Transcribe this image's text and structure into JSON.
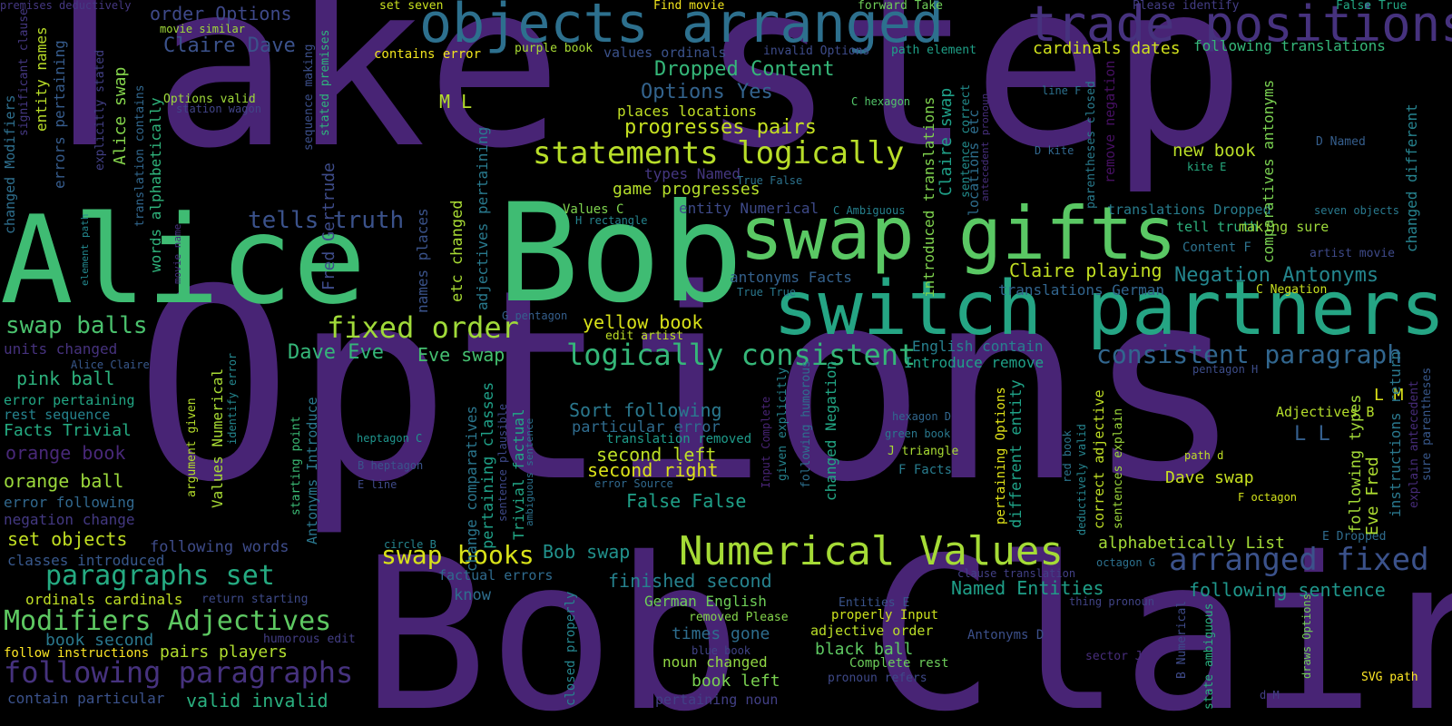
{
  "words": [
    {
      "text": "Take step",
      "color": "#482475"
    },
    {
      "text": "Options",
      "color": "#482475"
    },
    {
      "text": "Bob Claire",
      "color": "#482475"
    },
    {
      "text": "Alice",
      "color": "#3fbc73"
    },
    {
      "text": "Bob",
      "color": "#3fbc73"
    },
    {
      "text": "swap gifts",
      "color": "#5ac864"
    },
    {
      "text": "switch partners",
      "color": "#25a584"
    },
    {
      "text": "objects arranged",
      "color": "#2d708e"
    },
    {
      "text": "trade positions",
      "color": "#46327e"
    },
    {
      "text": "Numerical Values",
      "color": "#a5db36"
    },
    {
      "text": "arranged fixed",
      "color": "#3b528b"
    },
    {
      "text": "Modifiers Adjectives",
      "color": "#5ec962"
    },
    {
      "text": "following paragraphs",
      "color": "#46327e"
    },
    {
      "text": "paragraphs set",
      "color": "#25ab82"
    },
    {
      "text": "statements logically",
      "color": "#b8de29"
    },
    {
      "text": "logically consistent",
      "color": "#35b779"
    },
    {
      "text": "fixed order",
      "color": "#a0da39"
    },
    {
      "text": "consistent paragraph",
      "color": "#31668e"
    },
    {
      "text": "swap books",
      "color": "#d8e219"
    },
    {
      "text": "swap balls",
      "color": "#4ac16d"
    },
    {
      "text": "Negation Antonyms",
      "color": "#24868e"
    },
    {
      "text": "Claire playing",
      "color": "#c2df23"
    },
    {
      "text": "Dropped Content",
      "color": "#35b779"
    },
    {
      "text": "Options Yes",
      "color": "#33638d"
    },
    {
      "text": "progresses pairs",
      "color": "#c5e021"
    },
    {
      "text": "tells truth",
      "color": "#3b528b"
    },
    {
      "text": "Claire Dave",
      "color": "#3b528b"
    },
    {
      "text": "order Options",
      "color": "#3e4989"
    },
    {
      "text": "Dave Eve",
      "color": "#35b779"
    },
    {
      "text": "Eve swap",
      "color": "#44bf70"
    },
    {
      "text": "yellow book",
      "color": "#d8e219"
    },
    {
      "text": "game progresses",
      "color": "#b5de2b"
    },
    {
      "text": "places locations",
      "color": "#c0df25"
    },
    {
      "text": "second left",
      "color": "#bddf26"
    },
    {
      "text": "second right",
      "color": "#dde318"
    },
    {
      "text": "False False",
      "color": "#1fa088"
    },
    {
      "text": "Sort following",
      "color": "#2a788e"
    },
    {
      "text": "particular error",
      "color": "#2f6c8e"
    },
    {
      "text": "translation removed",
      "color": "#1e9b8a"
    },
    {
      "text": "Bob swap",
      "color": "#21918c"
    },
    {
      "text": "finished second",
      "color": "#26828e"
    },
    {
      "text": "German English",
      "color": "#6ece58"
    },
    {
      "text": "times gone",
      "color": "#2e6d8e"
    },
    {
      "text": "black ball",
      "color": "#5ec962"
    },
    {
      "text": "book left",
      "color": "#7ad151"
    },
    {
      "text": "noun changed",
      "color": "#90d743"
    },
    {
      "text": "pertaining noun",
      "color": "#424086"
    },
    {
      "text": "Named Entities",
      "color": "#1f9f88"
    },
    {
      "text": "following sentence",
      "color": "#1f968b"
    },
    {
      "text": "alphabetically List",
      "color": "#a2da37"
    },
    {
      "text": "Dave swap",
      "color": "#c8e020"
    },
    {
      "text": "new book",
      "color": "#bade28"
    },
    {
      "text": "tell truth",
      "color": "#2db27d"
    },
    {
      "text": "making sure",
      "color": "#9dd93b"
    },
    {
      "text": "Content F",
      "color": "#2c728e"
    },
    {
      "text": "entity Numerical",
      "color": "#3e4a89"
    },
    {
      "text": "antonyms Facts",
      "color": "#34618d"
    },
    {
      "text": "Values C",
      "color": "#7fd34e"
    },
    {
      "text": "types Named",
      "color": "#453781"
    },
    {
      "text": "M L",
      "color": "#b5de2b"
    },
    {
      "text": "L M",
      "color": "#dde318"
    },
    {
      "text": "L L",
      "color": "#355f8d"
    },
    {
      "text": "pink ball",
      "color": "#2db27d"
    },
    {
      "text": "Facts Trivial",
      "color": "#25ab82"
    },
    {
      "text": "orange book",
      "color": "#482878"
    },
    {
      "text": "orange ball",
      "color": "#9bd93c"
    },
    {
      "text": "error following",
      "color": "#31688e"
    },
    {
      "text": "negation change",
      "color": "#443983"
    },
    {
      "text": "set objects",
      "color": "#c2df23"
    },
    {
      "text": "following words",
      "color": "#3e4c8a"
    },
    {
      "text": "classes introduced",
      "color": "#38588c"
    },
    {
      "text": "ordinals cardinals",
      "color": "#c0df25"
    },
    {
      "text": "book second",
      "color": "#2a788e"
    },
    {
      "text": "pairs players",
      "color": "#b0dd2f"
    },
    {
      "text": "valid invalid",
      "color": "#2ab07f"
    },
    {
      "text": "contain particular",
      "color": "#3b528b"
    },
    {
      "text": "follow instructions",
      "color": "#fde725"
    },
    {
      "text": "humorous edit",
      "color": "#433e85"
    },
    {
      "text": "return starting",
      "color": "#3e4a89"
    },
    {
      "text": "units changed",
      "color": "#46327e"
    },
    {
      "text": "error pertaining",
      "color": "#22a785"
    },
    {
      "text": "rest sequence",
      "color": "#25838e"
    },
    {
      "text": "cardinals dates",
      "color": "#d0e11c"
    },
    {
      "text": "following translations",
      "color": "#35b779"
    },
    {
      "text": "Introduce remove",
      "color": "#1fa188"
    },
    {
      "text": "English contain",
      "color": "#27808e"
    },
    {
      "text": "translations German",
      "color": "#32658e"
    },
    {
      "text": "adjective order",
      "color": "#bade28"
    },
    {
      "text": "properly Input",
      "color": "#cde11d"
    },
    {
      "text": "Complete rest",
      "color": "#6ccd5a"
    },
    {
      "text": "Adjectives B",
      "color": "#b5de2b"
    },
    {
      "text": "translations Dropped",
      "color": "#287d8e"
    },
    {
      "text": "Find movie",
      "color": "#f1e51d"
    },
    {
      "text": "forward Take",
      "color": "#6ece58"
    },
    {
      "text": "set seven",
      "color": "#cae11f"
    },
    {
      "text": "Please identify",
      "color": "#433d84"
    },
    {
      "text": "False True",
      "color": "#22a884"
    },
    {
      "text": "contains error",
      "color": "#f1e51d"
    },
    {
      "text": "purple book",
      "color": "#a8db34"
    },
    {
      "text": "values ordinals",
      "color": "#3b528b"
    },
    {
      "text": "invalid Options",
      "color": "#3e4c8a"
    },
    {
      "text": "path element",
      "color": "#1fa188"
    },
    {
      "text": "premises deductively",
      "color": "#453882"
    },
    {
      "text": "movie similar",
      "color": "#a0da39"
    },
    {
      "text": "Options valid",
      "color": "#9fda3a"
    },
    {
      "text": "station wagon",
      "color": "#414487"
    },
    {
      "text": "C hexagon",
      "color": "#52c569"
    },
    {
      "text": "line F",
      "color": "#2d718e"
    },
    {
      "text": "D kite",
      "color": "#31678e"
    },
    {
      "text": "kite E",
      "color": "#26ad81"
    },
    {
      "text": "D Named",
      "color": "#355e8d"
    },
    {
      "text": "True False",
      "color": "#2c738e"
    },
    {
      "text": "H rectangle",
      "color": "#25848e"
    },
    {
      "text": "C Ambiguous",
      "color": "#26818e"
    },
    {
      "text": "True True",
      "color": "#2a788e"
    },
    {
      "text": "G pentagon",
      "color": "#355f8d"
    },
    {
      "text": "edit artist",
      "color": "#bddf26"
    },
    {
      "text": "Alice Claire",
      "color": "#38588c"
    },
    {
      "text": "heptagon C",
      "color": "#1f948c"
    },
    {
      "text": "B heptagon",
      "color": "#3a548c"
    },
    {
      "text": "E line",
      "color": "#3e4a89"
    },
    {
      "text": "error Source",
      "color": "#30698e"
    },
    {
      "text": "circle B",
      "color": "#25858e"
    },
    {
      "text": "factual errors",
      "color": "#2f6b8e"
    },
    {
      "text": "know",
      "color": "#2e6e8e"
    },
    {
      "text": "removed Please",
      "color": "#84d44b"
    },
    {
      "text": "blue book",
      "color": "#414487"
    },
    {
      "text": "Entities E",
      "color": "#3a548c"
    },
    {
      "text": "hexagon D",
      "color": "#31678e"
    },
    {
      "text": "green book",
      "color": "#2a788e"
    },
    {
      "text": "J triangle",
      "color": "#a8db34"
    },
    {
      "text": "F Facts",
      "color": "#287c8e"
    },
    {
      "text": "clause translation",
      "color": "#424086"
    },
    {
      "text": "octagon G",
      "color": "#2c718e"
    },
    {
      "text": "thing pronoun",
      "color": "#414487"
    },
    {
      "text": "Antonyms D",
      "color": "#3c508b"
    },
    {
      "text": "sector J",
      "color": "#472d7b"
    },
    {
      "text": "pronoun refers",
      "color": "#3e4989"
    },
    {
      "text": "path d",
      "color": "#c0df25"
    },
    {
      "text": "F octagon",
      "color": "#d2e21b"
    },
    {
      "text": "E Dropped",
      "color": "#2f6c8e"
    },
    {
      "text": "pentagon H",
      "color": "#3d4d8a"
    },
    {
      "text": "C Negation",
      "color": "#c8e020"
    },
    {
      "text": "seven objects",
      "color": "#29798e"
    },
    {
      "text": "artist movie",
      "color": "#3e4a89"
    },
    {
      "text": "SVG path",
      "color": "#fde725"
    },
    {
      "text": "d M",
      "color": "#433e85"
    },
    {
      "text": "changed Modifiers",
      "color": "#2e6f8e"
    },
    {
      "text": "significant clause",
      "color": "#453882"
    },
    {
      "text": "errors pertaining",
      "color": "#365c8d"
    },
    {
      "text": "entity names",
      "color": "#bade28"
    },
    {
      "text": "explicitly stated",
      "color": "#424086"
    },
    {
      "text": "Alice swap",
      "color": "#84d44b"
    },
    {
      "text": "words alphabetically",
      "color": "#2fb47c"
    },
    {
      "text": "translation contains",
      "color": "#31678e"
    },
    {
      "text": "sequence making",
      "color": "#3c4f8a"
    },
    {
      "text": "stated premises",
      "color": "#2fb47c"
    },
    {
      "text": "Fred Gertrude",
      "color": "#3e4c8a"
    },
    {
      "text": "names places",
      "color": "#3a538b"
    },
    {
      "text": "etc changed",
      "color": "#a8db34"
    },
    {
      "text": "adjectives pertaining",
      "color": "#297a8e"
    },
    {
      "text": "change comparatives",
      "color": "#2a768e"
    },
    {
      "text": "pertaining classes",
      "color": "#1fa088"
    },
    {
      "text": "sentence plausible",
      "color": "#3e4989"
    },
    {
      "text": "Trivial factual",
      "color": "#21a685"
    },
    {
      "text": "ambiguous sentence",
      "color": "#2c728e"
    },
    {
      "text": "element path",
      "color": "#23888e"
    },
    {
      "text": "movie name",
      "color": "#46307e"
    },
    {
      "text": "argument given",
      "color": "#b5de2b"
    },
    {
      "text": "Values Numerical",
      "color": "#a8db34"
    },
    {
      "text": "identify error",
      "color": "#24868e"
    },
    {
      "text": "starting point",
      "color": "#3bbb75"
    },
    {
      "text": "Antonyms Introduce",
      "color": "#2a778e"
    },
    {
      "text": "introduced translations",
      "color": "#7fd34e"
    },
    {
      "text": "Claire swap",
      "color": "#1fa088"
    },
    {
      "text": "sentence correct",
      "color": "#228d8d"
    },
    {
      "text": "locations etc",
      "color": "#2e6e8e"
    },
    {
      "text": "antecedent pronoun",
      "color": "#472f7d"
    },
    {
      "text": "Input Complete",
      "color": "#482475"
    },
    {
      "text": "given explicitly",
      "color": "#25838e"
    },
    {
      "text": "following humorous",
      "color": "#2d708e"
    },
    {
      "text": "changed Negation",
      "color": "#22a785"
    },
    {
      "text": "pertaining Options",
      "color": "#e2e418"
    },
    {
      "text": "different entity",
      "color": "#1fa287"
    },
    {
      "text": "red book",
      "color": "#2b758e"
    },
    {
      "text": "deductively valid",
      "color": "#25848e"
    },
    {
      "text": "correct adjective",
      "color": "#c0df25"
    },
    {
      "text": "sentences explain",
      "color": "#9dd93b"
    },
    {
      "text": "parentheses closed",
      "color": "#297b8e"
    },
    {
      "text": "remove negation",
      "color": "#471063"
    },
    {
      "text": "comparatives antonyms",
      "color": "#7ad151"
    },
    {
      "text": "following types",
      "color": "#a2da37"
    },
    {
      "text": "Eve Fred",
      "color": "#addc30"
    },
    {
      "text": "instructions return",
      "color": "#2a788e"
    },
    {
      "text": "explain antecedent",
      "color": "#472c7a"
    },
    {
      "text": "sure parentheses",
      "color": "#38588c"
    },
    {
      "text": "changed different",
      "color": "#26828e"
    },
    {
      "text": "closed properly",
      "color": "#25858e"
    },
    {
      "text": "state ambiguous",
      "color": "#29af7f"
    },
    {
      "text": "B Numerical",
      "color": "#3e4a89"
    },
    {
      "text": "draws Options",
      "color": "#73d056"
    }
  ]
}
